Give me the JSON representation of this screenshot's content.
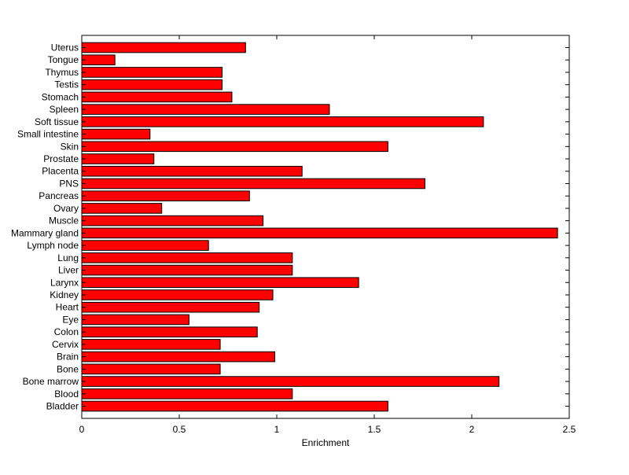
{
  "chart_data": {
    "type": "bar",
    "orientation": "horizontal",
    "title": "",
    "xlabel": "Enrichment",
    "ylabel": "",
    "xlim": [
      0,
      2.5
    ],
    "xticks": [
      0,
      0.5,
      1,
      1.5,
      2,
      2.5
    ],
    "xtick_labels": [
      "0",
      "0.5",
      "1",
      "1.5",
      "2",
      "2.5"
    ],
    "grid": false,
    "bar_color": "#ff0000",
    "bar_edge_color": "#000000",
    "categories": [
      "Bladder",
      "Blood",
      "Bone marrow",
      "Bone",
      "Brain",
      "Cervix",
      "Colon",
      "Eye",
      "Heart",
      "Kidney",
      "Larynx",
      "Liver",
      "Lung",
      "Lymph node",
      "Mammary gland",
      "Muscle",
      "Ovary",
      "Pancreas",
      "PNS",
      "Placenta",
      "Prostate",
      "Skin",
      "Small intestine",
      "Soft tissue",
      "Spleen",
      "Stomach",
      "Testis",
      "Thymus",
      "Tongue",
      "Uterus"
    ],
    "values": [
      1.57,
      1.08,
      2.14,
      0.71,
      0.99,
      0.71,
      0.9,
      0.55,
      0.91,
      0.98,
      1.42,
      1.08,
      1.08,
      0.65,
      2.44,
      0.93,
      0.41,
      0.86,
      1.76,
      1.13,
      0.37,
      1.57,
      0.35,
      2.06,
      1.27,
      0.77,
      0.72,
      0.72,
      0.17,
      0.84
    ]
  }
}
